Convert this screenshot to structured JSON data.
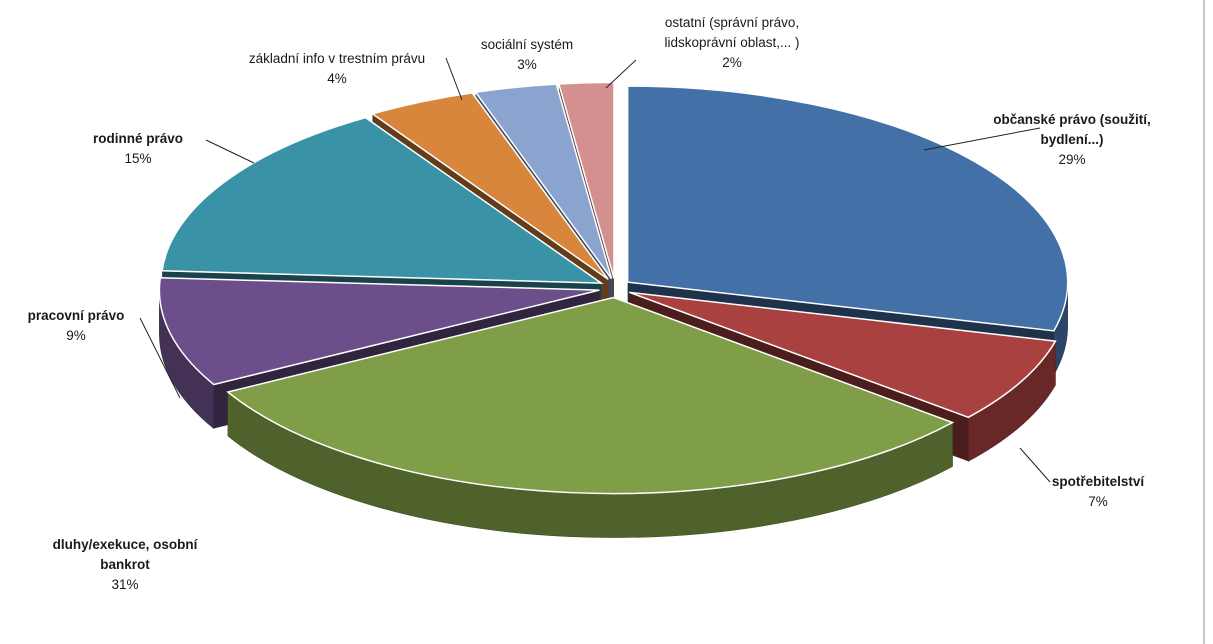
{
  "chart_data": {
    "type": "pie",
    "three_d": true,
    "exploded": true,
    "legend": "none",
    "slices": [
      {
        "label_lines": [
          "občanské právo (soužití,",
          "bydlení...)"
        ],
        "percent_label": "29%",
        "value": 29,
        "color": "#4470a8",
        "bold": true
      },
      {
        "label_lines": [
          "spotřebitelství"
        ],
        "percent_label": "7%",
        "value": 7,
        "color": "#a84140",
        "bold": true
      },
      {
        "label_lines": [
          "dluhy/exekuce, osobní",
          "bankrot"
        ],
        "percent_label": "31%",
        "value": 31,
        "color": "#7f9e47",
        "bold": true
      },
      {
        "label_lines": [
          "pracovní právo"
        ],
        "percent_label": "9%",
        "value": 9,
        "color": "#6c4f8a",
        "bold": true
      },
      {
        "label_lines": [
          "rodinné právo"
        ],
        "percent_label": "15%",
        "value": 15,
        "color": "#3a92a6",
        "bold": true
      },
      {
        "label_lines": [
          "základní info v trestním právu"
        ],
        "percent_label": "4%",
        "value": 4,
        "color": "#d9863d",
        "bold": false
      },
      {
        "label_lines": [
          "sociální systém"
        ],
        "percent_label": "3%",
        "value": 3,
        "color": "#8aa4cf",
        "bold": false
      },
      {
        "label_lines": [
          "ostatní (správní právo,",
          "lidskoprávní oblast,... )"
        ],
        "percent_label": "2%",
        "value": 2,
        "color": "#d48f8f",
        "bold": false
      }
    ]
  }
}
